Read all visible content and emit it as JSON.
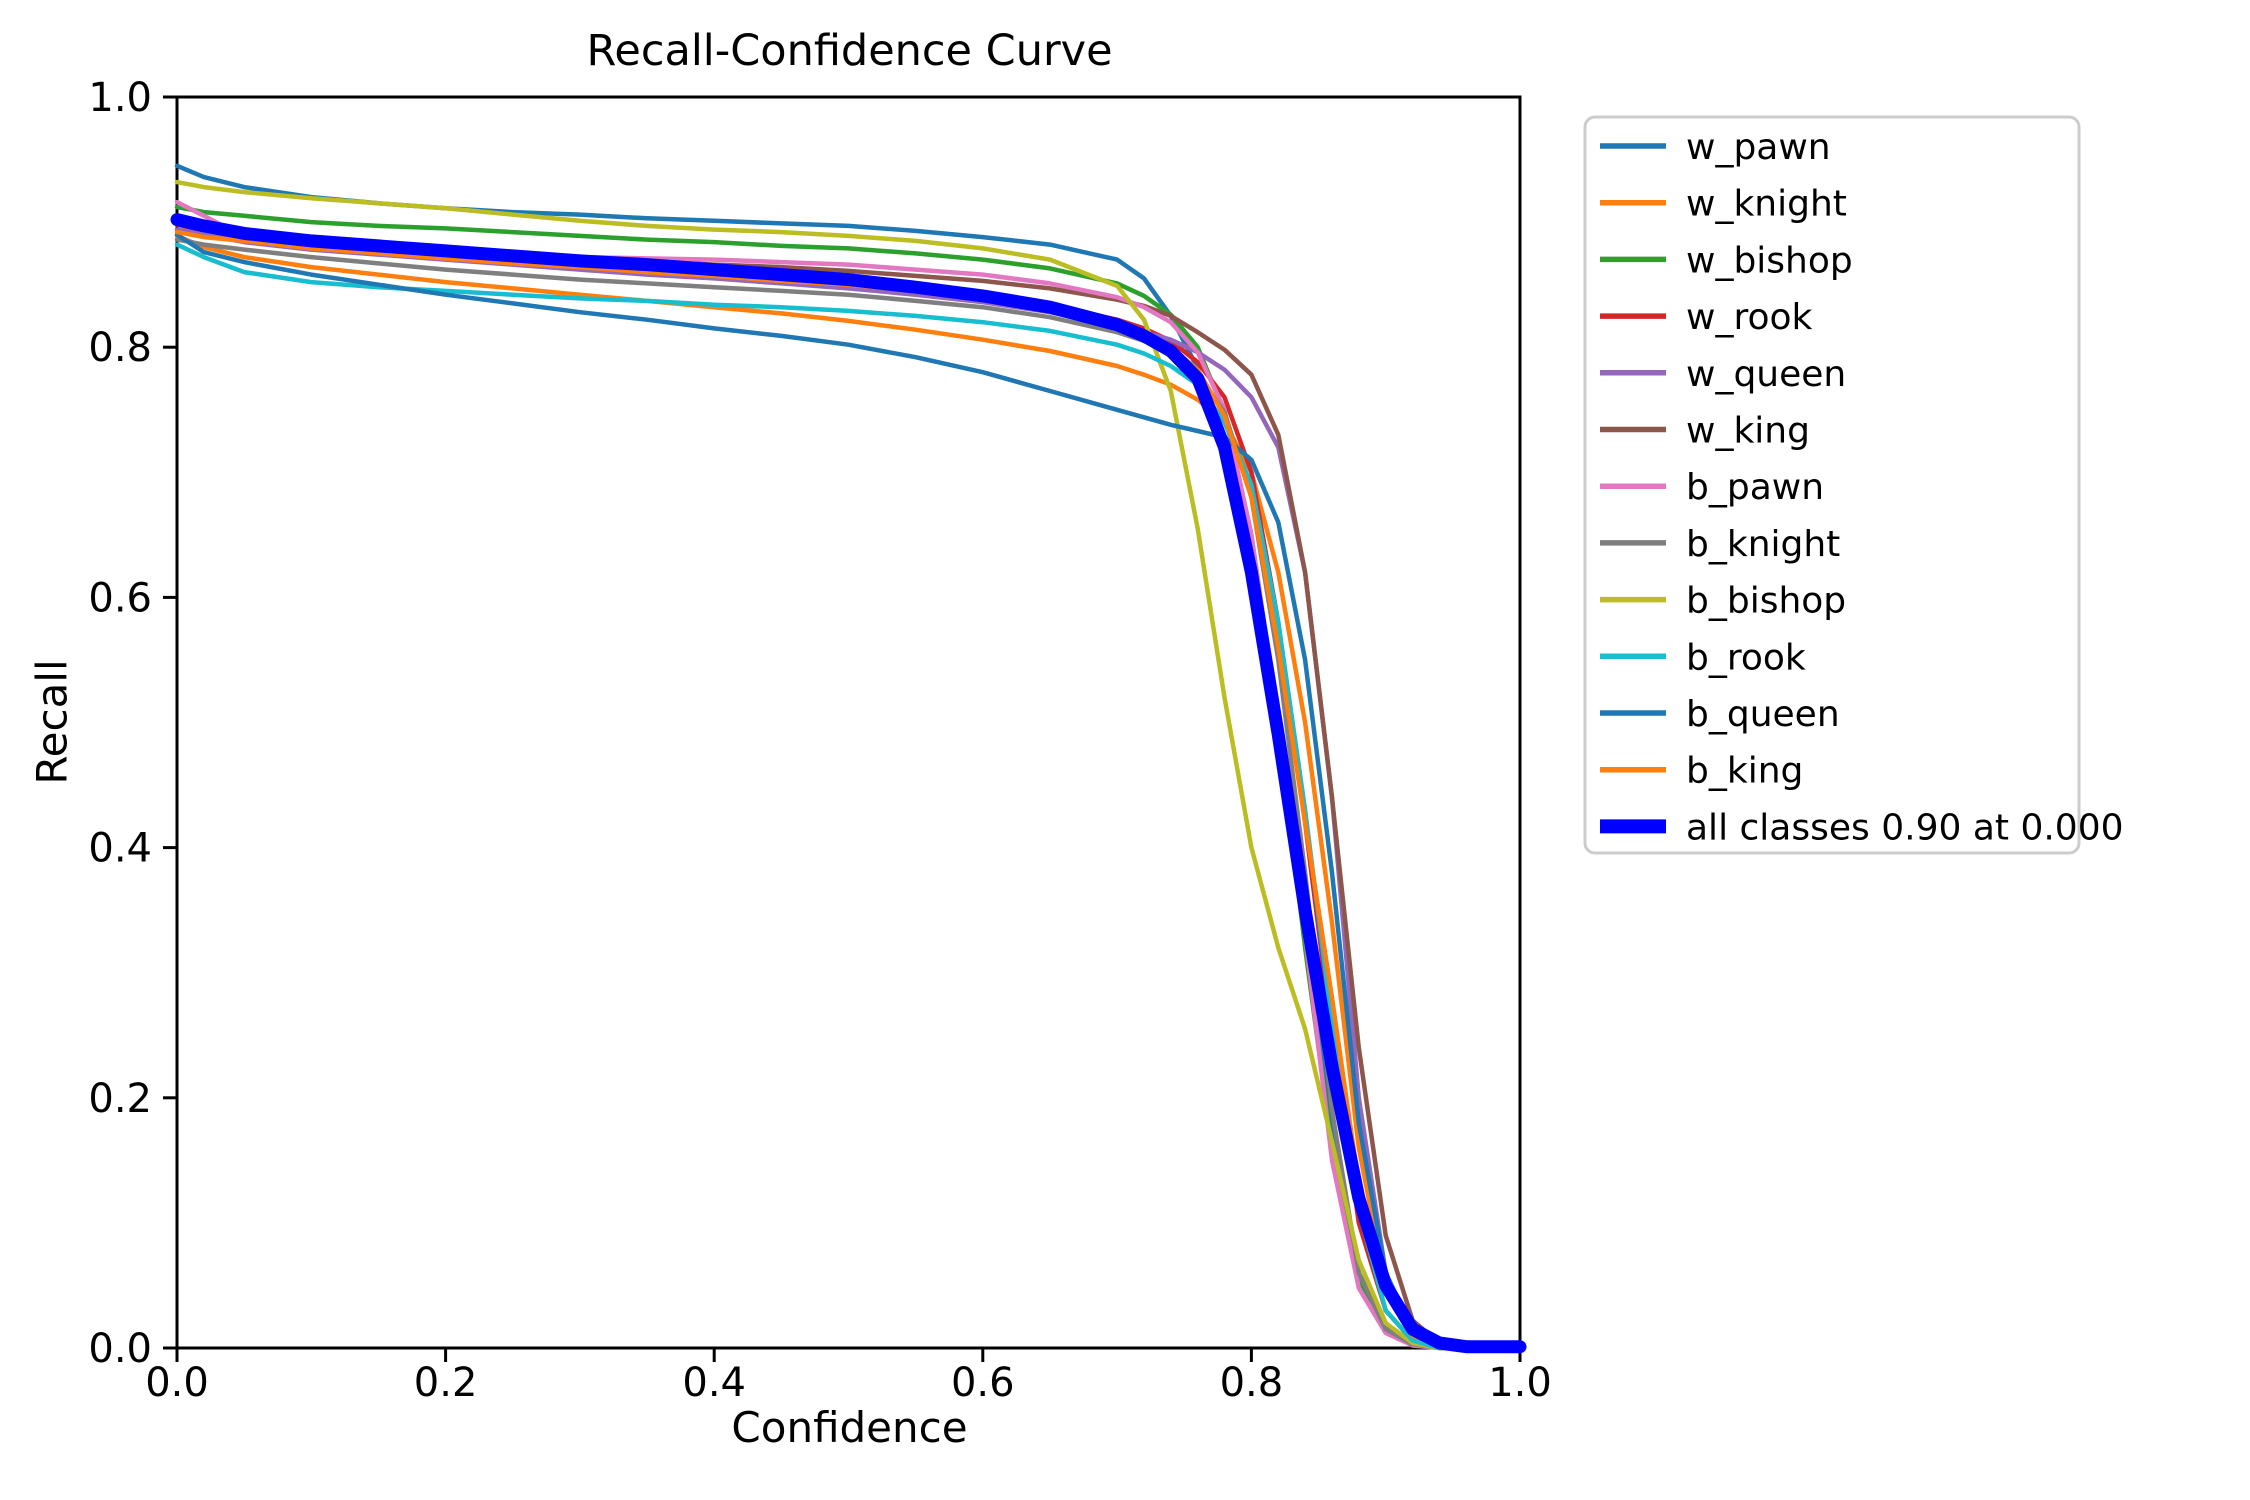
{
  "chart_data": {
    "type": "line",
    "title": "Recall-Confidence Curve",
    "xlabel": "Confidence",
    "ylabel": "Recall",
    "xlim": [
      0,
      1
    ],
    "ylim": [
      0,
      1
    ],
    "grid": false,
    "legend_position": "upper-right-outside",
    "x_tick_labels": [
      "0.0",
      "0.2",
      "0.4",
      "0.6",
      "0.8",
      "1.0"
    ],
    "y_tick_labels": [
      "0.0",
      "0.2",
      "0.4",
      "0.6",
      "0.8",
      "1.0"
    ],
    "x_tick_values": [
      0,
      0.2,
      0.4,
      0.6,
      0.8,
      1.0
    ],
    "y_tick_values": [
      0,
      0.2,
      0.4,
      0.6,
      0.8,
      1.0
    ],
    "x": [
      0,
      0.02,
      0.05,
      0.1,
      0.15,
      0.2,
      0.25,
      0.3,
      0.35,
      0.4,
      0.45,
      0.5,
      0.55,
      0.6,
      0.65,
      0.7,
      0.72,
      0.74,
      0.76,
      0.78,
      0.8,
      0.82,
      0.84,
      0.86,
      0.88,
      0.9,
      0.92,
      0.94,
      0.96,
      1
    ],
    "series": [
      {
        "name": "w_pawn",
        "color": "#1f77b4",
        "thick": false,
        "values": [
          0.945,
          0.936,
          0.928,
          0.92,
          0.915,
          0.911,
          0.908,
          0.906,
          0.903,
          0.901,
          0.899,
          0.897,
          0.893,
          0.888,
          0.882,
          0.87,
          0.855,
          0.825,
          0.783,
          0.726,
          0.635,
          0.495,
          0.33,
          0.17,
          0.06,
          0.018,
          0.004,
          0.001,
          0,
          0
        ]
      },
      {
        "name": "w_knight",
        "color": "#ff7f0e",
        "thick": false,
        "values": [
          0.889,
          0.88,
          0.872,
          0.864,
          0.858,
          0.852,
          0.847,
          0.842,
          0.837,
          0.832,
          0.827,
          0.821,
          0.814,
          0.806,
          0.797,
          0.785,
          0.778,
          0.77,
          0.758,
          0.74,
          0.7,
          0.62,
          0.5,
          0.34,
          0.16,
          0.05,
          0.012,
          0.002,
          0,
          0
        ]
      },
      {
        "name": "w_bishop",
        "color": "#2ca02c",
        "thick": false,
        "values": [
          0.912,
          0.908,
          0.905,
          0.9,
          0.897,
          0.895,
          0.892,
          0.889,
          0.886,
          0.884,
          0.881,
          0.879,
          0.875,
          0.87,
          0.863,
          0.851,
          0.841,
          0.826,
          0.8,
          0.748,
          0.65,
          0.5,
          0.32,
          0.16,
          0.055,
          0.014,
          0.003,
          0,
          0,
          0
        ]
      },
      {
        "name": "w_rook",
        "color": "#d62728",
        "thick": false,
        "values": [
          0.898,
          0.893,
          0.888,
          0.882,
          0.877,
          0.873,
          0.869,
          0.866,
          0.863,
          0.86,
          0.856,
          0.852,
          0.847,
          0.842,
          0.834,
          0.822,
          0.815,
          0.805,
          0.788,
          0.76,
          0.7,
          0.58,
          0.42,
          0.25,
          0.1,
          0.03,
          0.006,
          0.001,
          0,
          0
        ]
      },
      {
        "name": "w_queen",
        "color": "#9467bd",
        "thick": false,
        "values": [
          0.894,
          0.89,
          0.884,
          0.878,
          0.874,
          0.87,
          0.866,
          0.862,
          0.858,
          0.855,
          0.851,
          0.847,
          0.842,
          0.836,
          0.828,
          0.817,
          0.812,
          0.806,
          0.796,
          0.782,
          0.76,
          0.72,
          0.62,
          0.44,
          0.2,
          0.06,
          0.012,
          0.002,
          0,
          0
        ]
      },
      {
        "name": "w_king",
        "color": "#8c564b",
        "thick": false,
        "values": [
          0.905,
          0.895,
          0.886,
          0.883,
          0.88,
          0.878,
          0.875,
          0.871,
          0.869,
          0.866,
          0.864,
          0.861,
          0.857,
          0.853,
          0.847,
          0.838,
          0.833,
          0.825,
          0.812,
          0.798,
          0.778,
          0.73,
          0.62,
          0.44,
          0.24,
          0.09,
          0.022,
          0.004,
          0,
          0
        ]
      },
      {
        "name": "b_pawn",
        "color": "#e377c2",
        "thick": false,
        "values": [
          0.916,
          0.905,
          0.888,
          0.882,
          0.879,
          0.876,
          0.874,
          0.872,
          0.871,
          0.87,
          0.868,
          0.866,
          0.862,
          0.858,
          0.851,
          0.84,
          0.832,
          0.82,
          0.796,
          0.75,
          0.65,
          0.5,
          0.33,
          0.15,
          0.048,
          0.012,
          0.002,
          0,
          0,
          0
        ]
      },
      {
        "name": "b_knight",
        "color": "#7f7f7f",
        "thick": false,
        "values": [
          0.886,
          0.882,
          0.878,
          0.872,
          0.867,
          0.862,
          0.858,
          0.854,
          0.851,
          0.848,
          0.845,
          0.842,
          0.837,
          0.832,
          0.824,
          0.812,
          0.805,
          0.795,
          0.778,
          0.748,
          0.68,
          0.55,
          0.38,
          0.19,
          0.06,
          0.015,
          0.003,
          0,
          0,
          0
        ]
      },
      {
        "name": "b_bishop",
        "color": "#bcbd22",
        "thick": false,
        "values": [
          0.932,
          0.928,
          0.924,
          0.919,
          0.915,
          0.911,
          0.906,
          0.901,
          0.897,
          0.894,
          0.892,
          0.889,
          0.885,
          0.879,
          0.87,
          0.849,
          0.822,
          0.765,
          0.655,
          0.52,
          0.4,
          0.32,
          0.255,
          0.165,
          0.07,
          0.02,
          0.004,
          0,
          0,
          0
        ]
      },
      {
        "name": "b_rook",
        "color": "#17becf",
        "thick": false,
        "values": [
          0.882,
          0.872,
          0.86,
          0.852,
          0.848,
          0.845,
          0.842,
          0.839,
          0.837,
          0.834,
          0.832,
          0.829,
          0.825,
          0.82,
          0.813,
          0.802,
          0.795,
          0.785,
          0.77,
          0.74,
          0.69,
          0.58,
          0.43,
          0.26,
          0.11,
          0.03,
          0.006,
          0,
          0,
          0
        ]
      },
      {
        "name": "b_queen",
        "color": "#1f77b4",
        "thick": false,
        "values": [
          0.89,
          0.876,
          0.868,
          0.858,
          0.85,
          0.842,
          0.835,
          0.828,
          0.822,
          0.815,
          0.809,
          0.802,
          0.792,
          0.78,
          0.765,
          0.75,
          0.744,
          0.738,
          0.733,
          0.728,
          0.71,
          0.66,
          0.55,
          0.38,
          0.18,
          0.06,
          0.015,
          0.003,
          0,
          0
        ]
      },
      {
        "name": "b_king",
        "color": "#ff7f0e",
        "thick": false,
        "values": [
          0.892,
          0.888,
          0.885,
          0.879,
          0.875,
          0.871,
          0.867,
          0.864,
          0.86,
          0.857,
          0.853,
          0.85,
          0.845,
          0.84,
          0.832,
          0.82,
          0.812,
          0.8,
          0.782,
          0.745,
          0.68,
          0.56,
          0.42,
          0.28,
          0.13,
          0.045,
          0.01,
          0.002,
          0,
          0
        ]
      },
      {
        "name": "all classes 0.90 at 0.000",
        "color": "#0000ff",
        "thick": true,
        "values": [
          0.902,
          0.897,
          0.891,
          0.885,
          0.881,
          0.877,
          0.873,
          0.869,
          0.866,
          0.862,
          0.858,
          0.854,
          0.848,
          0.841,
          0.832,
          0.818,
          0.809,
          0.797,
          0.775,
          0.72,
          0.62,
          0.49,
          0.35,
          0.225,
          0.12,
          0.05,
          0.015,
          0.004,
          0.001,
          0.001
        ]
      }
    ],
    "legend_border_color": "#cccccc",
    "axis_color": "#000000"
  }
}
